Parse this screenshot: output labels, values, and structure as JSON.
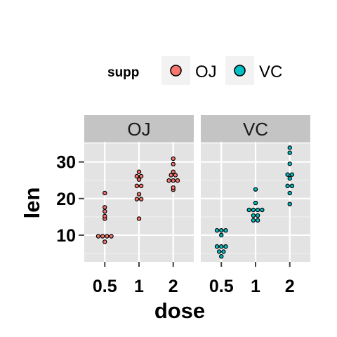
{
  "chart_data": {
    "type": "dotplot",
    "facet_by": "supp",
    "panels": [
      "OJ",
      "VC"
    ],
    "categories": [
      "0.5",
      "1",
      "2"
    ],
    "xlabel": "dose",
    "ylabel": "len",
    "yticks": [
      10,
      20,
      30
    ],
    "ylim": [
      2.7,
      35.5
    ],
    "grid": true,
    "legend": {
      "title": "supp",
      "position": "top",
      "entries": [
        {
          "label": "OJ",
          "color": "#F8766D"
        },
        {
          "label": "VC",
          "color": "#00BFC4"
        }
      ]
    },
    "series": [
      {
        "name": "OJ",
        "color": "#F8766D",
        "points": {
          "0.5": [
            15.2,
            21.5,
            17.6,
            9.7,
            14.5,
            10.0,
            8.2,
            9.4,
            16.5,
            9.7
          ],
          "1": [
            19.7,
            23.3,
            23.6,
            26.4,
            20.0,
            25.2,
            25.8,
            21.2,
            14.5,
            27.3
          ],
          "2": [
            25.5,
            26.4,
            22.4,
            24.5,
            24.8,
            30.9,
            26.4,
            27.3,
            29.4,
            23.0
          ]
        }
      },
      {
        "name": "VC",
        "color": "#00BFC4",
        "points": {
          "0.5": [
            4.2,
            11.5,
            7.3,
            5.8,
            6.4,
            10.0,
            11.2,
            11.2,
            5.2,
            7.0
          ],
          "1": [
            16.5,
            16.5,
            15.2,
            17.3,
            22.5,
            17.3,
            13.6,
            14.5,
            18.8,
            15.5
          ],
          "2": [
            23.6,
            18.5,
            33.9,
            25.5,
            26.4,
            32.5,
            26.7,
            21.5,
            23.3,
            29.5
          ]
        }
      }
    ]
  }
}
